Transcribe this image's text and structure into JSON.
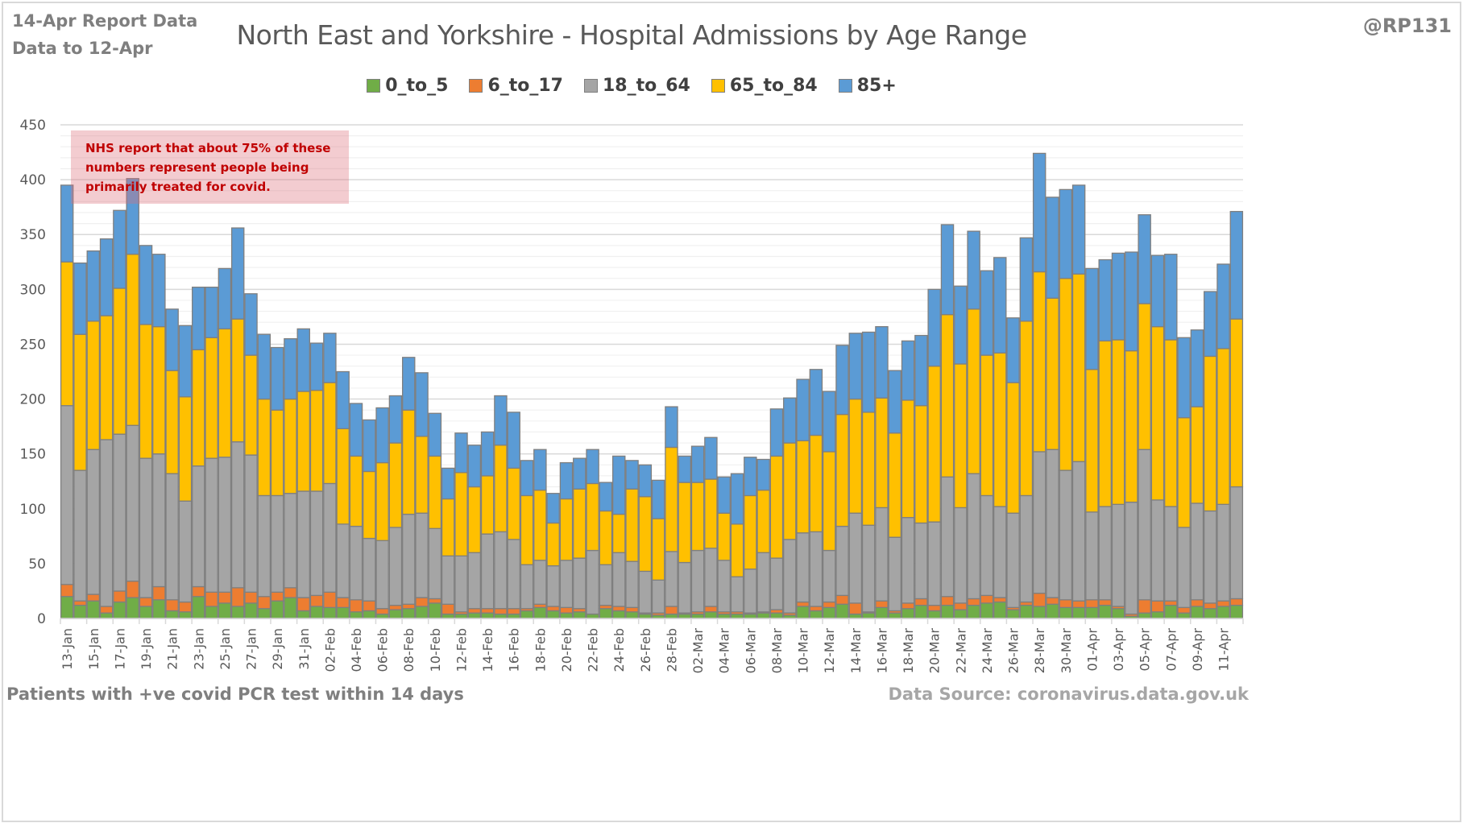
{
  "header": {
    "report_label": "14-Apr Report Data",
    "data_to_label": "Data to 12-Apr",
    "handle": "@RP131"
  },
  "footer": {
    "left": "Patients with  +ve covid PCR test within 14 days",
    "right": "Data Source: coronavirus.data.gov.uk"
  },
  "annotation": {
    "text": "NHS report that about 75% of these numbers represent people being primarily treated for covid."
  },
  "chart_data": {
    "type": "bar",
    "stacked": true,
    "title": "North East and Yorkshire - Hospital Admissions by Age Range",
    "xlabel": "",
    "ylabel": "",
    "ylim": [
      0,
      450
    ],
    "yticks": [
      0,
      50,
      100,
      150,
      200,
      250,
      300,
      350,
      400,
      450
    ],
    "grid": true,
    "legend_position": "top",
    "x_tick_labels": [
      "13-Jan",
      "15-Jan",
      "17-Jan",
      "19-Jan",
      "21-Jan",
      "23-Jan",
      "25-Jan",
      "27-Jan",
      "29-Jan",
      "31-Jan",
      "02-Feb",
      "04-Feb",
      "06-Feb",
      "08-Feb",
      "10-Feb",
      "12-Feb",
      "14-Feb",
      "16-Feb",
      "18-Feb",
      "20-Feb",
      "22-Feb",
      "24-Feb",
      "26-Feb",
      "28-Feb",
      "02-Mar",
      "04-Mar",
      "06-Mar",
      "08-Mar",
      "10-Mar",
      "12-Mar",
      "14-Mar",
      "16-Mar",
      "18-Mar",
      "20-Mar",
      "22-Mar",
      "24-Mar",
      "26-Mar",
      "28-Mar",
      "30-Mar",
      "01-Apr",
      "03-Apr",
      "05-Apr",
      "07-Apr",
      "09-Apr",
      "11-Apr"
    ],
    "categories": [
      "13-Jan",
      "14-Jan",
      "15-Jan",
      "16-Jan",
      "17-Jan",
      "18-Jan",
      "19-Jan",
      "20-Jan",
      "21-Jan",
      "22-Jan",
      "23-Jan",
      "24-Jan",
      "25-Jan",
      "26-Jan",
      "27-Jan",
      "28-Jan",
      "29-Jan",
      "30-Jan",
      "31-Jan",
      "01-Feb",
      "02-Feb",
      "03-Feb",
      "04-Feb",
      "05-Feb",
      "06-Feb",
      "07-Feb",
      "08-Feb",
      "09-Feb",
      "10-Feb",
      "11-Feb",
      "12-Feb",
      "13-Feb",
      "14-Feb",
      "15-Feb",
      "16-Feb",
      "17-Feb",
      "18-Feb",
      "19-Feb",
      "20-Feb",
      "21-Feb",
      "22-Feb",
      "23-Feb",
      "24-Feb",
      "25-Feb",
      "26-Feb",
      "27-Feb",
      "28-Feb",
      "01-Mar",
      "02-Mar",
      "03-Mar",
      "04-Mar",
      "05-Mar",
      "06-Mar",
      "07-Mar",
      "08-Mar",
      "09-Mar",
      "10-Mar",
      "11-Mar",
      "12-Mar",
      "13-Mar",
      "14-Mar",
      "15-Mar",
      "16-Mar",
      "17-Mar",
      "18-Mar",
      "19-Mar",
      "20-Mar",
      "21-Mar",
      "22-Mar",
      "23-Mar",
      "24-Mar",
      "25-Mar",
      "26-Mar",
      "27-Mar",
      "28-Mar",
      "29-Mar",
      "30-Mar",
      "31-Mar",
      "01-Apr",
      "02-Apr",
      "03-Apr",
      "04-Apr",
      "05-Apr",
      "06-Apr",
      "07-Apr",
      "08-Apr",
      "09-Apr",
      "10-Apr",
      "11-Apr",
      "12-Apr"
    ],
    "series": [
      {
        "name": "0_to_5",
        "color": "#70ad47",
        "values": [
          20,
          12,
          16,
          5,
          15,
          19,
          11,
          17,
          7,
          6,
          20,
          11,
          14,
          11,
          14,
          9,
          16,
          19,
          7,
          11,
          10,
          10,
          6,
          7,
          4,
          8,
          9,
          11,
          14,
          4,
          4,
          5,
          5,
          4,
          4,
          7,
          10,
          7,
          5,
          6,
          4,
          9,
          7,
          6,
          4,
          3,
          4,
          4,
          4,
          6,
          4,
          4,
          4,
          5,
          5,
          3,
          11,
          7,
          10,
          13,
          4,
          5,
          10,
          5,
          9,
          12,
          7,
          12,
          8,
          12,
          14,
          15,
          8,
          12,
          11,
          13,
          10,
          10,
          10,
          12,
          9,
          2,
          5,
          6,
          12,
          5,
          11,
          9,
          11,
          12
        ]
      },
      {
        "name": "6_to_17",
        "color": "#ed7d31",
        "values": [
          11,
          4,
          6,
          6,
          10,
          15,
          8,
          12,
          10,
          9,
          9,
          13,
          10,
          17,
          10,
          11,
          8,
          9,
          12,
          10,
          14,
          9,
          11,
          9,
          5,
          4,
          4,
          8,
          4,
          9,
          2,
          4,
          4,
          5,
          5,
          2,
          3,
          4,
          5,
          3,
          0,
          3,
          4,
          4,
          1,
          2,
          7,
          1,
          2,
          5,
          2,
          2,
          1,
          1,
          3,
          2,
          4,
          4,
          5,
          8,
          10,
          1,
          6,
          2,
          5,
          6,
          5,
          8,
          6,
          6,
          7,
          4,
          2,
          3,
          12,
          6,
          7,
          6,
          7,
          5,
          2,
          2,
          12,
          10,
          4,
          5,
          6,
          5,
          5,
          6
        ]
      },
      {
        "name": "18_to_64",
        "color": "#a5a5a5",
        "values": [
          163,
          119,
          132,
          152,
          143,
          142,
          127,
          121,
          115,
          92,
          110,
          122,
          123,
          133,
          125,
          92,
          88,
          86,
          97,
          95,
          99,
          67,
          67,
          57,
          62,
          71,
          82,
          77,
          64,
          44,
          51,
          51,
          68,
          70,
          63,
          40,
          40,
          37,
          43,
          46,
          58,
          37,
          49,
          42,
          38,
          30,
          50,
          46,
          56,
          53,
          47,
          32,
          40,
          54,
          47,
          67,
          63,
          68,
          47,
          63,
          82,
          79,
          85,
          67,
          78,
          69,
          76,
          109,
          87,
          114,
          91,
          83,
          86,
          97,
          129,
          135,
          118,
          127,
          80,
          85,
          93,
          102,
          137,
          92,
          86,
          73,
          88,
          84,
          88,
          102
        ]
      },
      {
        "name": "65_to_84",
        "color": "#ffc000",
        "values": [
          131,
          124,
          117,
          113,
          133,
          156,
          122,
          116,
          94,
          95,
          106,
          110,
          117,
          112,
          91,
          88,
          78,
          86,
          91,
          92,
          92,
          87,
          64,
          61,
          71,
          77,
          95,
          70,
          66,
          52,
          76,
          60,
          53,
          79,
          65,
          63,
          64,
          39,
          56,
          63,
          61,
          49,
          35,
          66,
          68,
          56,
          95,
          73,
          62,
          63,
          43,
          48,
          67,
          57,
          93,
          88,
          84,
          88,
          90,
          102,
          104,
          103,
          100,
          95,
          107,
          107,
          142,
          148,
          131,
          150,
          128,
          140,
          119,
          159,
          164,
          138,
          175,
          171,
          130,
          151,
          150,
          138,
          133,
          158,
          152,
          100,
          88,
          141,
          142,
          153
        ]
      },
      {
        "name": "85+",
        "color": "#5b9bd5",
        "values": [
          70,
          65,
          64,
          70,
          71,
          69,
          72,
          66,
          56,
          65,
          57,
          46,
          55,
          83,
          56,
          59,
          57,
          55,
          57,
          43,
          45,
          52,
          48,
          47,
          50,
          43,
          48,
          58,
          39,
          28,
          36,
          38,
          40,
          45,
          51,
          32,
          37,
          27,
          33,
          28,
          31,
          26,
          53,
          26,
          29,
          35,
          37,
          24,
          33,
          38,
          33,
          46,
          35,
          28,
          43,
          41,
          56,
          60,
          55,
          63,
          60,
          73,
          65,
          57,
          54,
          64,
          70,
          82,
          71,
          71,
          77,
          87,
          59,
          76,
          108,
          92,
          81,
          81,
          92,
          74,
          79,
          90,
          81,
          65,
          78,
          73,
          70,
          59,
          77,
          98
        ]
      }
    ]
  }
}
